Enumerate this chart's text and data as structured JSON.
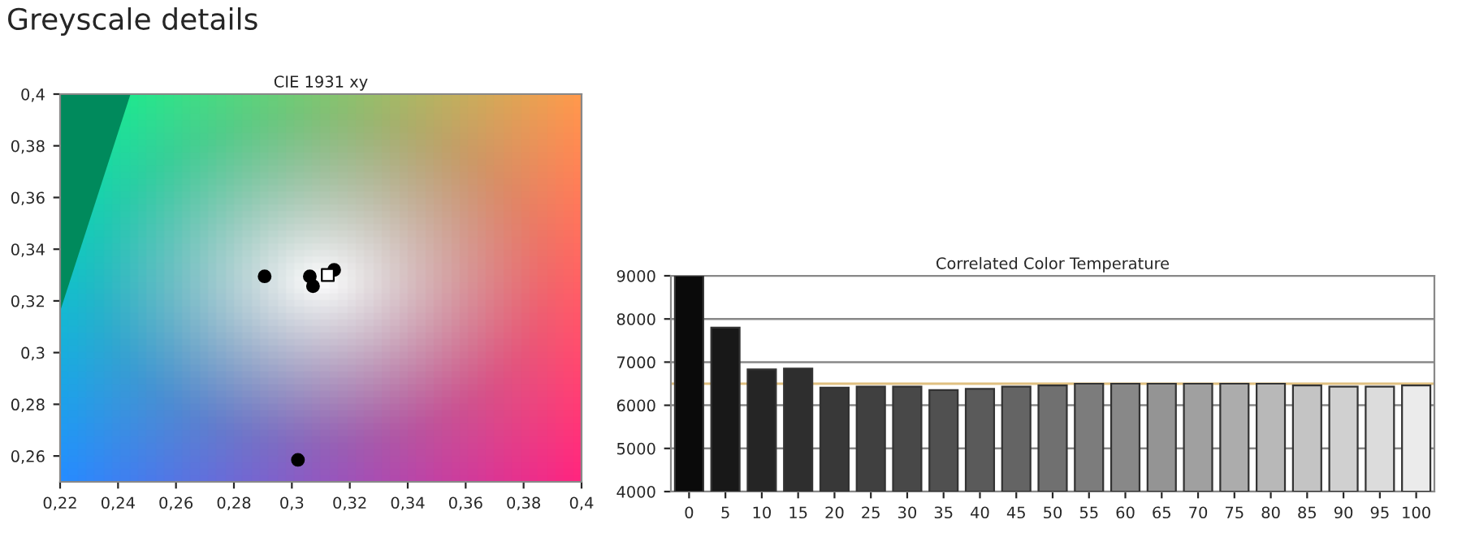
{
  "chart_data": [
    {
      "type": "scatter",
      "title": "CIE 1931 xy",
      "annotations": [
        "Greyscale details"
      ],
      "xlim": [
        0.22,
        0.4
      ],
      "xticks": [
        {
          "value": 0.22,
          "label": "0,22"
        },
        {
          "value": 0.24,
          "label": "0,24"
        },
        {
          "value": 0.26,
          "label": "0,26"
        },
        {
          "value": 0.28,
          "label": "0,28"
        },
        {
          "value": 0.3,
          "label": "0,3"
        },
        {
          "value": 0.32,
          "label": "0,32"
        },
        {
          "value": 0.34,
          "label": "0,34"
        },
        {
          "value": 0.36,
          "label": "0,36"
        },
        {
          "value": 0.38,
          "label": "0,38"
        },
        {
          "value": 0.4,
          "label": "0,4"
        }
      ],
      "ylim": [
        0.25,
        0.4
      ],
      "yticks": [
        {
          "value": 0.26,
          "label": "0,26"
        },
        {
          "value": 0.28,
          "label": "0,28"
        },
        {
          "value": 0.3,
          "label": "0,3"
        },
        {
          "value": 0.32,
          "label": "0,32"
        },
        {
          "value": 0.34,
          "label": "0,34"
        },
        {
          "value": 0.36,
          "label": "0,36"
        },
        {
          "value": 0.38,
          "label": "0,38"
        },
        {
          "value": 0.4,
          "label": "0,4"
        }
      ],
      "grid": false,
      "series": [
        {
          "color": "#000000",
          "marker": "circle",
          "x": [
            0.2906,
            0.3062,
            0.3073,
            0.3021,
            0.3146
          ],
          "values": [
            0.3295,
            0.3295,
            0.3257,
            0.2585,
            0.332
          ]
        },
        {
          "color": "#ffffff",
          "marker": "square",
          "x": [
            0.3124
          ],
          "values": [
            0.33
          ]
        }
      ]
    },
    {
      "type": "bar",
      "title": "Correlated Color Temperature",
      "categories": [
        "0",
        "5",
        "10",
        "15",
        "20",
        "25",
        "30",
        "35",
        "40",
        "45",
        "50",
        "55",
        "60",
        "65",
        "70",
        "75",
        "80",
        "85",
        "90",
        "95",
        "100"
      ],
      "values": [
        9000,
        7800,
        6830,
        6850,
        6410,
        6430,
        6430,
        6350,
        6380,
        6430,
        6460,
        6500,
        6500,
        6500,
        6500,
        6500,
        6500,
        6460,
        6430,
        6430,
        6460
      ],
      "colors": [
        "#0a0a0a",
        "#181818",
        "#252525",
        "#2e2e2e",
        "#383838",
        "#404040",
        "#484848",
        "#505050",
        "#5a5a5a",
        "#646464",
        "#707070",
        "#7c7c7c",
        "#888888",
        "#949494",
        "#a0a0a0",
        "#acacac",
        "#b8b8b8",
        "#c4c4c4",
        "#d0d0d0",
        "#dcdcdc",
        "#ebebeb"
      ],
      "ylim": [
        4000,
        9000
      ],
      "yticks": [
        4000,
        5000,
        6000,
        7000,
        8000,
        9000
      ],
      "grid": "y",
      "ref_lines": [
        {
          "axis": "y",
          "value": 6500,
          "label": null,
          "color": "#e0c080"
        }
      ]
    }
  ]
}
